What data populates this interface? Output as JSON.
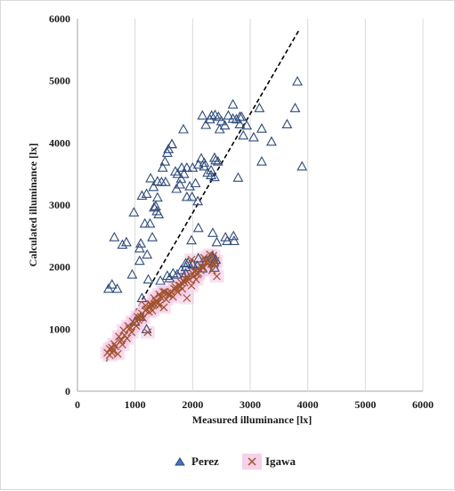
{
  "chart_data": {
    "type": "scatter",
    "title": "",
    "xlabel": "Measured illuminance  [lx]",
    "ylabel": "Calculated illuminance  [lx]",
    "xlim": [
      0,
      6000
    ],
    "ylim": [
      0,
      6000
    ],
    "xticks": [
      "0",
      "1000",
      "2000",
      "3000",
      "4000",
      "5000",
      "6000"
    ],
    "yticks": [
      "0",
      "1000",
      "2000",
      "3000",
      "4000",
      "5000",
      "6000"
    ],
    "grid": "vertical",
    "legend_position": "bottom",
    "colors": {
      "perez": "#2f4b7c",
      "igawa": "#a0522d",
      "igawa_halo": "#f4c6e4",
      "reference": "#000000"
    },
    "reference_line": {
      "style": "dashed",
      "x": [
        500,
        3850
      ],
      "y": [
        480,
        5820
      ]
    },
    "series": [
      {
        "name": "Perez",
        "marker": "triangle",
        "x": [
          540,
          600,
          690,
          640,
          780,
          850,
          950,
          1080,
          1080,
          1100,
          1210,
          1260,
          1300,
          1330,
          1380,
          1410,
          1460,
          1530,
          1520,
          1580,
          1640,
          1700,
          1720,
          1780,
          1800,
          1850,
          1900,
          1950,
          2000,
          2050,
          2100,
          2150,
          2200,
          2260,
          2320,
          2380,
          2400,
          2440,
          2470,
          2500,
          2560,
          2620,
          2700,
          2760,
          2820,
          2850,
          2880,
          2940,
          3060,
          3200,
          3370,
          3640,
          3780,
          3820,
          3900,
          980,
          1120,
          1170,
          1270,
          1320,
          1390,
          1480,
          1560,
          1640,
          1740,
          1810,
          1900,
          1990,
          2090,
          2170,
          2230,
          2300,
          2390,
          2450,
          2700,
          2330,
          2820,
          1000,
          1100,
          1200,
          1660,
          1800,
          1880,
          2000,
          2080,
          2170,
          2240,
          2350,
          2420,
          2000,
          2100,
          1120,
          1440,
          1230,
          2570,
          2710,
          2720,
          2600,
          1880,
          1730,
          1600,
          1560,
          2370,
          2350,
          2340,
          2400,
          1880,
          1920,
          2380,
          3200,
          3160,
          2790,
          1980,
          1200,
          1360,
          1390,
          2380,
          2320,
          2200,
          1840,
          2100
        ],
        "y": [
          1650,
          1720,
          1650,
          2480,
          2360,
          2400,
          1880,
          2100,
          2300,
          2380,
          2200,
          2700,
          2480,
          2960,
          2900,
          2850,
          3370,
          3370,
          3700,
          3900,
          3980,
          3540,
          3260,
          3330,
          3420,
          3500,
          3600,
          3300,
          3600,
          3350,
          3650,
          3750,
          3680,
          3520,
          3560,
          3450,
          3720,
          3700,
          4220,
          4350,
          4280,
          4440,
          4390,
          4380,
          4300,
          4420,
          4120,
          4280,
          4090,
          4230,
          4020,
          4300,
          4560,
          4990,
          3620,
          2880,
          3150,
          2700,
          3430,
          3290,
          3380,
          3600,
          3840,
          3980,
          3500,
          3600,
          3130,
          3130,
          3060,
          4440,
          4290,
          4380,
          4450,
          4420,
          4620,
          4440,
          4420,
          1120,
          1200,
          1000,
          1900,
          1950,
          2000,
          2050,
          2020,
          1980,
          2100,
          2550,
          2400,
          2040,
          2140,
          1500,
          1780,
          1800,
          2480,
          2500,
          2420,
          2420,
          1900,
          1880,
          1820,
          1860,
          2080,
          2150,
          2180,
          2120,
          2060,
          2070,
          1990,
          3700,
          4560,
          3440,
          2430,
          3180,
          2980,
          3120,
          3760,
          3480,
          3620,
          4220,
          2630
        ]
      },
      {
        "name": "Igawa",
        "marker": "x",
        "x": [
          520,
          560,
          600,
          620,
          660,
          700,
          740,
          780,
          820,
          860,
          900,
          940,
          980,
          1020,
          1060,
          1100,
          1140,
          1180,
          1220,
          1260,
          1300,
          1340,
          1380,
          1420,
          1460,
          1500,
          1540,
          1580,
          1620,
          1660,
          1700,
          1740,
          1780,
          1820,
          1860,
          1900,
          1940,
          1980,
          2020,
          2060,
          2100,
          2140,
          2180,
          2220,
          2260,
          2300,
          2340,
          2380,
          2420,
          560,
          640,
          720,
          800,
          880,
          960,
          1040,
          1120,
          1200,
          1280,
          1360,
          1440,
          1520,
          1600,
          1680,
          1760,
          1840,
          1920,
          2000,
          2080,
          2160,
          2240,
          2320,
          2400,
          600,
          760,
          920,
          1080,
          1240,
          1400,
          1560,
          1720,
          1880,
          2040,
          2200,
          2360,
          1980,
          2050,
          1900,
          1800,
          1700,
          1260,
          1330,
          1420,
          1490,
          1180
        ],
        "y": [
          620,
          580,
          700,
          650,
          720,
          600,
          800,
          750,
          900,
          850,
          1000,
          950,
          1100,
          1050,
          1150,
          1200,
          1180,
          1300,
          950,
          1350,
          1300,
          1400,
          1450,
          1380,
          1500,
          1350,
          1480,
          1550,
          1600,
          1520,
          1640,
          1600,
          1700,
          1650,
          1750,
          1500,
          1800,
          1700,
          1850,
          1800,
          1900,
          1950,
          2000,
          2100,
          2050,
          2200,
          1950,
          2050,
          1850,
          680,
          760,
          880,
          980,
          1050,
          1120,
          1200,
          1250,
          1320,
          1400,
          1450,
          1520,
          1600,
          1560,
          1650,
          1700,
          1780,
          1820,
          1900,
          1880,
          2000,
          2080,
          2050,
          2100,
          620,
          820,
          1020,
          1180,
          1280,
          1420,
          1580,
          1620,
          1800,
          1920,
          2150,
          2180,
          2120,
          1950,
          1850,
          1750,
          1680,
          1400,
          1500,
          1560,
          1600,
          1380
        ]
      }
    ]
  }
}
